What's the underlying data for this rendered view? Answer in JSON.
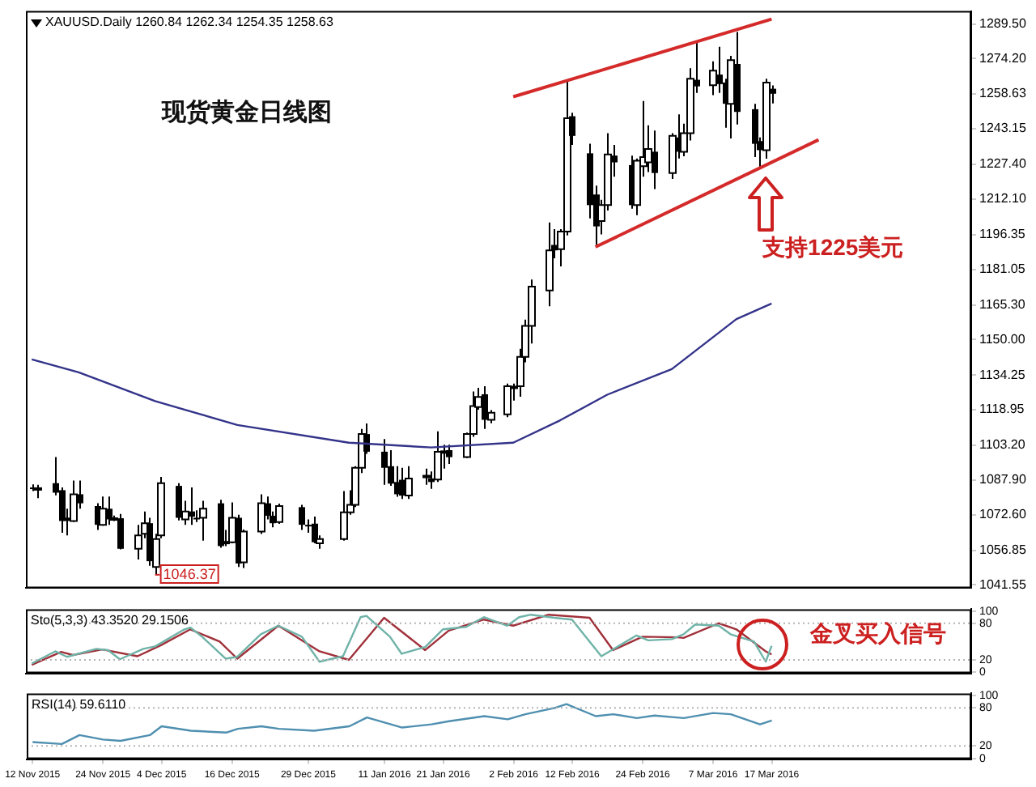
{
  "chart_data": [
    {
      "type": "candlestick",
      "title": "XAUUSD.Daily 1260.84 1262.34 1254.35 1258.63",
      "subtitle": "现货黄金日线图",
      "x": [
        "2015-11-12",
        "2015-11-13",
        "2015-11-16",
        "2015-11-17",
        "2015-11-18",
        "2015-11-19",
        "2015-11-20",
        "2015-11-23",
        "2015-11-24",
        "2015-11-25",
        "2015-11-26",
        "2015-11-27",
        "2015-11-30",
        "2015-12-01",
        "2015-12-02",
        "2015-12-03",
        "2015-12-04",
        "2015-12-07",
        "2015-12-08",
        "2015-12-09",
        "2015-12-10",
        "2015-12-11",
        "2015-12-14",
        "2015-12-15",
        "2015-12-16",
        "2015-12-17",
        "2015-12-18",
        "2015-12-21",
        "2015-12-22",
        "2015-12-23",
        "2015-12-24",
        "2015-12-28",
        "2015-12-29",
        "2015-12-30",
        "2015-12-31",
        "2016-01-04",
        "2016-01-05",
        "2016-01-06",
        "2016-01-07",
        "2016-01-08",
        "2016-01-11",
        "2016-01-12",
        "2016-01-13",
        "2016-01-14",
        "2016-01-15",
        "2016-01-18",
        "2016-01-19",
        "2016-01-20",
        "2016-01-21",
        "2016-01-22",
        "2016-01-25",
        "2016-01-26",
        "2016-01-27",
        "2016-01-28",
        "2016-01-29",
        "2016-02-01",
        "2016-02-02",
        "2016-02-03",
        "2016-02-04",
        "2016-02-05",
        "2016-02-08",
        "2016-02-09",
        "2016-02-10",
        "2016-02-11",
        "2016-02-12",
        "2016-02-15",
        "2016-02-16",
        "2016-02-17",
        "2016-02-18",
        "2016-02-19",
        "2016-02-22",
        "2016-02-23",
        "2016-02-24",
        "2016-02-25",
        "2016-02-26",
        "2016-02-29",
        "2016-03-01",
        "2016-03-02",
        "2016-03-03",
        "2016-03-04",
        "2016-03-07",
        "2016-03-08",
        "2016-03-09",
        "2016-03-10",
        "2016-03-11",
        "2016-03-14",
        "2016-03-15",
        "2016-03-16",
        "2016-03-17"
      ],
      "ohlc": [
        [
          1084.6,
          1086.0,
          1083.0,
          1084.3
        ],
        [
          1084.1,
          1085.8,
          1079.9,
          1084.3
        ],
        [
          1086.5,
          1098.0,
          1081.1,
          1082.3
        ],
        [
          1083.4,
          1084.6,
          1064.6,
          1069.8
        ],
        [
          1070.5,
          1075.2,
          1063.4,
          1070.9
        ],
        [
          1069.8,
          1087.7,
          1069.3,
          1081.6
        ],
        [
          1081.6,
          1087.7,
          1075.2,
          1077.6
        ],
        [
          1076.4,
          1077.6,
          1065.8,
          1068.1
        ],
        [
          1068.1,
          1080.6,
          1067.7,
          1075.2
        ],
        [
          1075.2,
          1080.6,
          1068.1,
          1070.5
        ],
        [
          1070.9,
          1072.2,
          1069.8,
          1071.0
        ],
        [
          1071.0,
          1072.9,
          1057.2,
          1057.5
        ],
        [
          1057.5,
          1068.1,
          1052.8,
          1063.4
        ],
        [
          1064.1,
          1074.0,
          1062.2,
          1068.8
        ],
        [
          1068.8,
          1071.2,
          1050.0,
          1052.0
        ],
        [
          1049.5,
          1064.1,
          1046.37,
          1061.8
        ],
        [
          1063.4,
          1089.3,
          1062.2,
          1086.5
        ],
        [
          1085.3,
          1086.5,
          1070.0,
          1071.2
        ],
        [
          1070.5,
          1078.7,
          1068.1,
          1074.0
        ],
        [
          1074.0,
          1084.6,
          1068.1,
          1071.7
        ],
        [
          1071.2,
          1074.5,
          1069.3,
          1071.0
        ],
        [
          1071.2,
          1078.7,
          1061.1,
          1075.2
        ],
        [
          1077.6,
          1079.2,
          1058.0,
          1058.7
        ],
        [
          1060.4,
          1065.8,
          1058.7,
          1060.6
        ],
        [
          1060.4,
          1078.0,
          1059.9,
          1071.2
        ],
        [
          1071.2,
          1072.5,
          1049.5,
          1051.0
        ],
        [
          1051.5,
          1066.0,
          1049.0,
          1065.1
        ],
        [
          1065.1,
          1081.6,
          1064.0,
          1077.6
        ],
        [
          1077.6,
          1080.6,
          1070.5,
          1072.1
        ],
        [
          1072.1,
          1074.0,
          1067.0,
          1068.8
        ],
        [
          1069.3,
          1077.5,
          1068.5,
          1076.4
        ],
        [
          1075.9,
          1076.9,
          1065.8,
          1068.1
        ],
        [
          1068.1,
          1070.5,
          1064.6,
          1067.9
        ],
        [
          1068.6,
          1071.7,
          1059.9,
          1060.4
        ],
        [
          1059.9,
          1063.4,
          1057.5,
          1061.8
        ],
        [
          1061.8,
          1083.0,
          1061.1,
          1073.6
        ],
        [
          1073.6,
          1083.4,
          1072.5,
          1076.9
        ],
        [
          1076.9,
          1094.0,
          1075.9,
          1093.3
        ],
        [
          1093.3,
          1110.5,
          1091.0,
          1108.2
        ],
        [
          1108.2,
          1112.9,
          1099.5,
          1100.4
        ],
        [
          1100.4,
          1106.0,
          1085.8,
          1093.3
        ],
        [
          1094.0,
          1101.1,
          1085.3,
          1086.3
        ],
        [
          1087.0,
          1094.0,
          1080.5,
          1081.6
        ],
        [
          1088.0,
          1093.3,
          1079.5,
          1081.0
        ],
        [
          1081.0,
          1094.0,
          1079.5,
          1088.6
        ],
        [
          1089.3,
          1092.9,
          1085.8,
          1089.8
        ],
        [
          1088.6,
          1091.7,
          1084.0,
          1087.0
        ],
        [
          1088.1,
          1109.4,
          1087.0,
          1100.4
        ],
        [
          1100.4,
          1103.5,
          1092.9,
          1100.6
        ],
        [
          1101.1,
          1103.5,
          1095.0,
          1098.0
        ],
        [
          1098.0,
          1108.9,
          1097.6,
          1108.2
        ],
        [
          1108.2,
          1127.0,
          1107.0,
          1120.6
        ],
        [
          1120.1,
          1128.6,
          1119.0,
          1124.6
        ],
        [
          1125.8,
          1129.4,
          1110.5,
          1114.5
        ],
        [
          1114.5,
          1118.8,
          1113.0,
          1117.6
        ],
        [
          1116.9,
          1130.5,
          1115.7,
          1129.4
        ],
        [
          1129.0,
          1130.5,
          1123.0,
          1129.2
        ],
        [
          1129.4,
          1145.9,
          1124.7,
          1142.3
        ],
        [
          1142.3,
          1158.8,
          1139.9,
          1156.0
        ],
        [
          1156.0,
          1176.5,
          1148.2,
          1173.4
        ],
        [
          1171.7,
          1201.7,
          1164.7,
          1189.4
        ],
        [
          1191.8,
          1198.8,
          1185.9,
          1189.4
        ],
        [
          1189.9,
          1198.8,
          1182.3,
          1197.7
        ],
        [
          1197.7,
          1264.8,
          1196.0,
          1247.8
        ],
        [
          1248.7,
          1250.2,
          1236.0,
          1240.0
        ],
        [
          1232.3,
          1236.5,
          1203.5,
          1209.4
        ],
        [
          1214.1,
          1218.0,
          1191.8,
          1200.0
        ],
        [
          1202.4,
          1211.8,
          1196.5,
          1209.4
        ],
        [
          1209.4,
          1241.2,
          1207.0,
          1231.8
        ],
        [
          1231.3,
          1236.0,
          1222.0,
          1228.3
        ],
        [
          1227.1,
          1231.3,
          1207.8,
          1209.4
        ],
        [
          1209.4,
          1230.0,
          1205.0,
          1229.0
        ],
        [
          1226.6,
          1255.4,
          1222.0,
          1230.6
        ],
        [
          1228.3,
          1244.7,
          1224.0,
          1234.2
        ],
        [
          1233.0,
          1242.4,
          1216.5,
          1223.6
        ],
        [
          1223.6,
          1241.2,
          1221.0,
          1240.0
        ],
        [
          1239.3,
          1249.5,
          1230.0,
          1233.0
        ],
        [
          1233.0,
          1245.4,
          1231.0,
          1241.2
        ],
        [
          1241.2,
          1269.9,
          1238.0,
          1265.3
        ],
        [
          1264.8,
          1281.3,
          1259.0,
          1261.9
        ],
        [
          1262.4,
          1273.0,
          1258.0,
          1268.8
        ],
        [
          1267.1,
          1279.4,
          1259.0,
          1262.9
        ],
        [
          1263.6,
          1265.3,
          1243.6,
          1254.2
        ],
        [
          1254.2,
          1275.4,
          1238.9,
          1273.5
        ],
        [
          1271.8,
          1285.9,
          1245.0,
          1250.6
        ],
        [
          1251.8,
          1254.2,
          1230.6,
          1236.5
        ],
        [
          1237.7,
          1239.3,
          1226.0,
          1233.7
        ],
        [
          1233.7,
          1265.3,
          1229.9,
          1263.6
        ],
        [
          1260.84,
          1262.34,
          1254.35,
          1258.63
        ]
      ],
      "series": [
        {
          "type": "line",
          "color": "#33338a",
          "x": [
            "2015-11-12",
            "2015-11-20",
            "2015-12-03",
            "2015-12-17",
            "2016-01-05",
            "2016-01-19",
            "2016-02-02",
            "2016-02-10",
            "2016-02-18",
            "2016-02-29",
            "2016-03-11",
            "2016-03-17"
          ],
          "values": [
            1141.2,
            1135.5,
            1122.8,
            1112.2,
            1104.4,
            1102.3,
            1104.4,
            1114.3,
            1125.6,
            1136.9,
            1159.0,
            1165.9
          ]
        },
        {
          "type": "line",
          "color": "#d42a2a",
          "x": [
            "2016-02-02",
            "2016-03-17"
          ],
          "values": [
            1257.3,
            1291.6
          ]
        },
        {
          "type": "line",
          "color": "#d42a2a",
          "x": [
            "2016-02-16",
            "2016-03-25"
          ],
          "values": [
            1190.9,
            1238.3
          ]
        }
      ],
      "xlim": [
        "2015-11-11",
        "2016-04-20"
      ],
      "ylim": [
        1040.1,
        1295.2
      ],
      "yticks": [
        {
          "value": 1041.55,
          "label": "1041.55"
        },
        {
          "value": 1056.85,
          "label": "1056.85"
        },
        {
          "value": 1072.6,
          "label": "1072.60"
        },
        {
          "value": 1087.9,
          "label": "1087.90"
        },
        {
          "value": 1103.2,
          "label": "1103.20"
        },
        {
          "value": 1118.95,
          "label": "1118.95"
        },
        {
          "value": 1134.25,
          "label": "1134.25"
        },
        {
          "value": 1150,
          "label": "1150.00"
        },
        {
          "value": 1165.3,
          "label": "1165.30"
        },
        {
          "value": 1181.05,
          "label": "1181.05"
        },
        {
          "value": 1196.35,
          "label": "1196.35"
        },
        {
          "value": 1212.1,
          "label": "1212.10"
        },
        {
          "value": 1227.4,
          "label": "1227.40"
        },
        {
          "value": 1243.15,
          "label": "1243.15"
        },
        {
          "value": 1258.63,
          "label": "1258.63"
        },
        {
          "value": 1274.2,
          "label": "1274.20"
        },
        {
          "value": 1289.5,
          "label": "1289.50"
        }
      ],
      "tick_labels": "y",
      "annotations": [
        {
          "text": "1046.37",
          "x": "2015-12-03",
          "y": 1046.37
        },
        {
          "text": "支持1225美元",
          "x": "2016-03-16",
          "y": 1225
        }
      ]
    },
    {
      "type": "line",
      "title": "Sto(5,3,3) 43.3520 29.1506",
      "series": [
        {
          "color": "#6fb3a8",
          "x": [
            "2015-11-12",
            "2015-11-16",
            "2015-11-18",
            "2015-11-23",
            "2015-11-25",
            "2015-11-27",
            "2015-12-01",
            "2015-12-03",
            "2015-12-08",
            "2015-12-09",
            "2015-12-11",
            "2015-12-15",
            "2015-12-17",
            "2015-12-21",
            "2015-12-24",
            "2015-12-28",
            "2015-12-31",
            "2016-01-04",
            "2016-01-07",
            "2016-01-08",
            "2016-01-12",
            "2016-01-14",
            "2016-01-18",
            "2016-01-21",
            "2016-01-25",
            "2016-01-28",
            "2016-02-01",
            "2016-02-03",
            "2016-02-05",
            "2016-02-09",
            "2016-02-12",
            "2016-02-17",
            "2016-02-23",
            "2016-02-25",
            "2016-02-29",
            "2016-03-02",
            "2016-03-04",
            "2016-03-08",
            "2016-03-10",
            "2016-03-14",
            "2016-03-16",
            "2016-03-17"
          ],
          "values": [
            14,
            34,
            25,
            38,
            36,
            21,
            38,
            42,
            70,
            73,
            58,
            22,
            25,
            62,
            76,
            58,
            17,
            26,
            90,
            92,
            58,
            30,
            41,
            70,
            74,
            90,
            76,
            90,
            94,
            89,
            86,
            26,
            60,
            52,
            54,
            62,
            78,
            76,
            62,
            50,
            17,
            43
          ]
        },
        {
          "color": "#a0303a",
          "x": [
            "2015-11-12",
            "2015-11-17",
            "2015-11-19",
            "2015-11-24",
            "2015-11-30",
            "2015-12-04",
            "2015-12-09",
            "2015-12-14",
            "2015-12-17",
            "2015-12-24",
            "2015-12-31",
            "2016-01-05",
            "2016-01-11",
            "2016-01-18",
            "2016-01-22",
            "2016-01-28",
            "2016-02-02",
            "2016-02-08",
            "2016-02-15",
            "2016-02-19",
            "2016-02-24",
            "2016-03-01",
            "2016-03-02",
            "2016-03-08",
            "2016-03-11",
            "2016-03-16",
            "2016-03-17"
          ],
          "values": [
            12,
            33,
            28,
            37,
            26,
            44,
            70,
            50,
            22,
            76,
            34,
            20,
            89,
            36,
            68,
            86,
            76,
            94,
            89,
            36,
            58,
            57,
            56,
            80,
            70,
            34,
            29
          ]
        }
      ],
      "xlim": [
        "2015-11-11",
        "2016-04-20"
      ],
      "ylim": [
        -2,
        103
      ],
      "yticks": [
        0,
        20,
        80,
        100
      ],
      "tick_labels": "y",
      "ref_lines": [
        {
          "axis": "y",
          "value": 80,
          "color": "#b4b4b4",
          "line_style": "dotted"
        },
        {
          "axis": "y",
          "value": 20,
          "color": "#b4b4b4",
          "line_style": "dotted"
        }
      ],
      "annotations": [
        {
          "text": "金叉买入信号",
          "x": "2016-03-17",
          "y": 29
        }
      ]
    },
    {
      "type": "line",
      "title": "RSI(14) 59.6110",
      "series": [
        {
          "color": "#4f8fb0",
          "x": [
            "2015-11-12",
            "2015-11-17",
            "2015-11-20",
            "2015-11-24",
            "2015-11-27",
            "2015-12-02",
            "2015-12-04",
            "2015-12-09",
            "2015-12-15",
            "2015-12-17",
            "2015-12-21",
            "2015-12-24",
            "2015-12-30",
            "2016-01-05",
            "2016-01-08",
            "2016-01-14",
            "2016-01-19",
            "2016-01-22",
            "2016-01-28",
            "2016-02-01",
            "2016-02-04",
            "2016-02-09",
            "2016-02-11",
            "2016-02-16",
            "2016-02-19",
            "2016-02-23",
            "2016-02-26",
            "2016-03-02",
            "2016-03-07",
            "2016-03-10",
            "2016-03-15",
            "2016-03-17"
          ],
          "values": [
            26,
            23,
            37,
            30,
            28,
            37,
            51,
            44,
            41,
            47,
            51,
            47,
            44,
            51,
            65,
            49,
            54,
            59,
            67,
            62,
            70,
            80,
            86,
            67,
            70,
            64,
            68,
            64,
            72,
            70,
            54,
            60
          ]
        }
      ],
      "xlim": [
        "2015-11-11",
        "2016-04-20"
      ],
      "ylim": [
        -1,
        103
      ],
      "yticks": [
        0,
        20,
        80,
        100
      ],
      "xticks": [
        {
          "value": "2015-11-12",
          "label": "12 Nov 2015"
        },
        {
          "value": "2015-11-24",
          "label": "24 Nov 2015"
        },
        {
          "value": "2015-12-04",
          "label": "4 Dec 2015"
        },
        {
          "value": "2015-12-16",
          "label": "16 Dec 2015"
        },
        {
          "value": "2015-12-29",
          "label": "29 Dec 2015"
        },
        {
          "value": "2016-01-11",
          "label": "11 Jan 2016"
        },
        {
          "value": "2016-01-21",
          "label": "21 Jan 2016"
        },
        {
          "value": "2016-02-02",
          "label": "2 Feb 2016"
        },
        {
          "value": "2016-02-12",
          "label": "12 Feb 2016"
        },
        {
          "value": "2016-02-24",
          "label": "24 Feb 2016"
        },
        {
          "value": "2016-03-07",
          "label": "7 Mar 2016"
        },
        {
          "value": "2016-03-17",
          "label": "17 Mar 2016"
        }
      ],
      "ref_lines": [
        {
          "axis": "y",
          "value": 80,
          "color": "#b4b4b4",
          "line_style": "dotted"
        },
        {
          "axis": "y",
          "value": 20,
          "color": "#b4b4b4",
          "line_style": "dotted"
        }
      ]
    }
  ]
}
